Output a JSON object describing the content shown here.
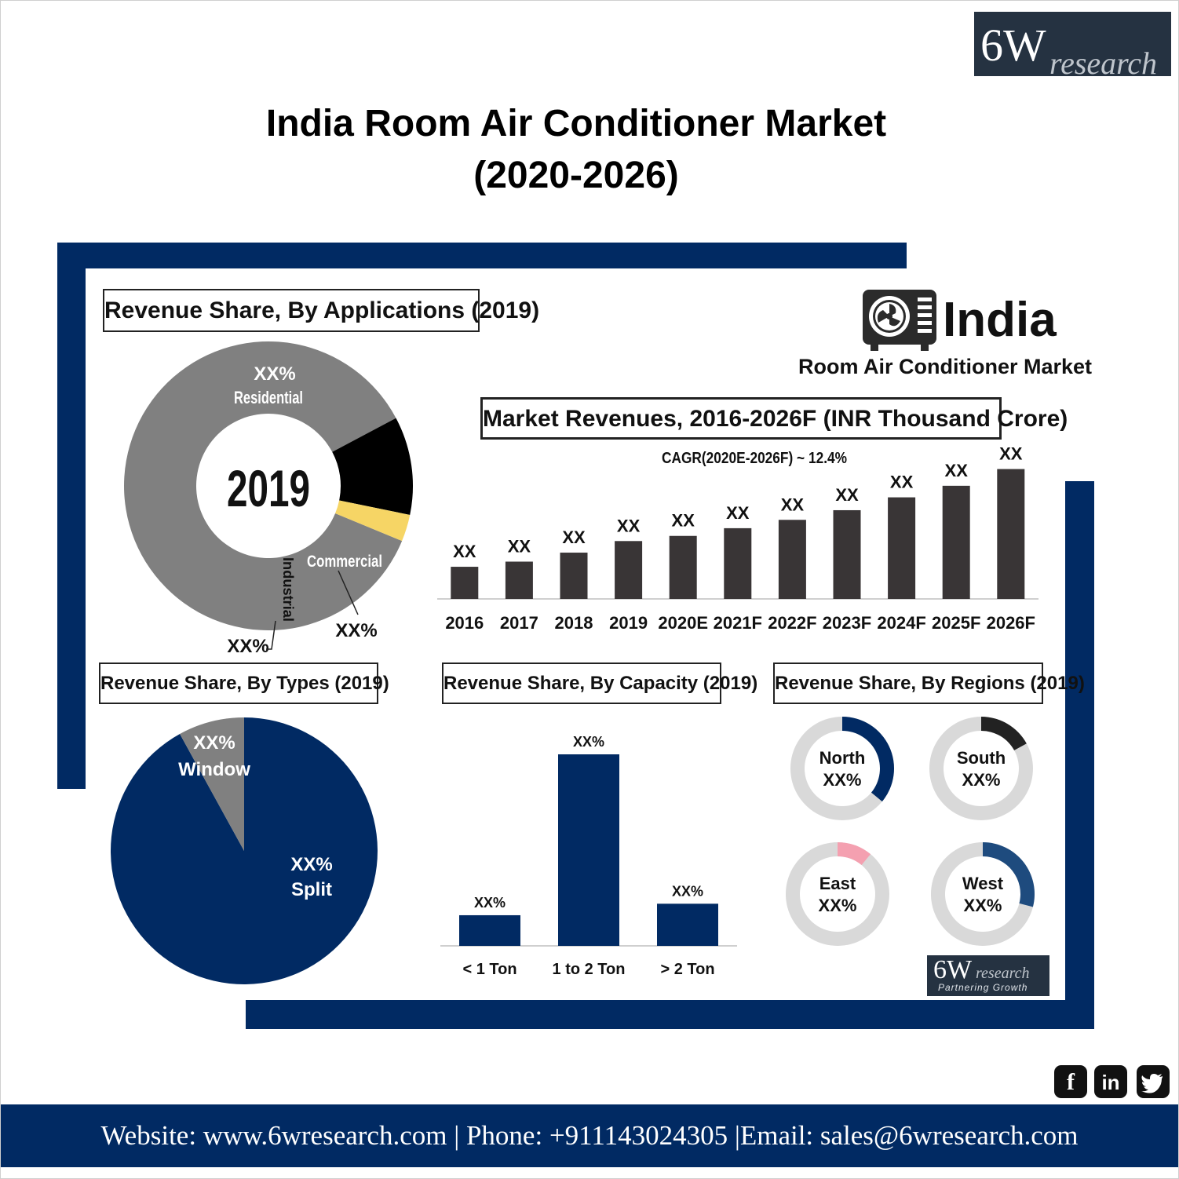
{
  "header": {
    "logo": {
      "big": "6W",
      "small": "research"
    },
    "title_line1": "India Room Air Conditioner Market",
    "title_line2": "(2020-2026)"
  },
  "india_logo": {
    "country": "India",
    "subtitle": "Room Air Conditioner Market",
    "icon": "air-conditioner-fan-icon"
  },
  "colors": {
    "navy": "#012a63",
    "dark_bar": "#393536",
    "gray": "#808080",
    "light_gray": "#d9d9d9",
    "yellow": "#f6d565",
    "pink": "#f4a0b0",
    "steel_blue": "#1e4b7e"
  },
  "chart_data": [
    {
      "type": "pie",
      "chart_title": "Revenue Share, By Applications (2019)",
      "center_label": "2019",
      "slices": [
        {
          "label": "Residential",
          "value_label": "XX%",
          "share": 0.86,
          "color": "#808080"
        },
        {
          "label": "Commercial",
          "value_label": "XX%",
          "share": 0.11,
          "color": "#000000"
        },
        {
          "label": "Industrial",
          "value_label": "XX%",
          "share": 0.03,
          "color": "#f6d565"
        }
      ]
    },
    {
      "type": "bar",
      "chart_title": "Market Revenues, 2016-2026F (INR Thousand Crore)",
      "annotation": "CAGR(2020E-2026F) ~ 12.4%",
      "categories": [
        "2016",
        "2017",
        "2018",
        "2019",
        "2020E",
        "2021F",
        "2022F",
        "2023F",
        "2024F",
        "2025F",
        "2026F"
      ],
      "values": [
        5,
        5.8,
        7.2,
        9,
        9.8,
        11,
        12.3,
        13.8,
        15.8,
        17.6,
        20.2
      ],
      "data_labels": [
        "XX",
        "XX",
        "XX",
        "XX",
        "XX",
        "XX",
        "XX",
        "XX",
        "XX",
        "XX",
        "XX"
      ],
      "ylim": [
        0,
        21
      ]
    },
    {
      "type": "pie",
      "chart_title": "Revenue Share, By Types (2019)",
      "slices": [
        {
          "label": "Split",
          "value_label": "XX%",
          "share": 0.92,
          "color": "#012a63"
        },
        {
          "label": "Window",
          "value_label": "XX%",
          "share": 0.08,
          "color": "#808080"
        }
      ]
    },
    {
      "type": "bar",
      "chart_title": "Revenue Share, By Capacity (2019)",
      "categories": [
        "< 1 Ton",
        "1 to 2 Ton",
        "> 2 Ton"
      ],
      "values": [
        16,
        100,
        22
      ],
      "data_labels": [
        "XX%",
        "XX%",
        "XX%"
      ],
      "ylim": [
        0,
        100
      ]
    },
    {
      "type": "pie",
      "chart_title": "Revenue Share, By Regions (2019)",
      "donuts": [
        {
          "label": "North",
          "value_label": "XX%",
          "share": 0.36,
          "color": "#012a63"
        },
        {
          "label": "South",
          "value_label": "XX%",
          "share": 0.17,
          "color": "#222222"
        },
        {
          "label": "East",
          "value_label": "XX%",
          "share": 0.11,
          "color": "#f4a0b0"
        },
        {
          "label": "West",
          "value_label": "XX%",
          "share": 0.29,
          "color": "#1e4b7e"
        }
      ]
    }
  ],
  "bottom_logo": {
    "big": "6W",
    "small": "research",
    "tagline": "Partnering Growth"
  },
  "social": {
    "facebook": "f",
    "linkedin": "in",
    "twitter_icon": "twitter-bird-icon"
  },
  "footer": {
    "text": "Website: www.6wresearch.com | Phone: +911143024305 |Email: sales@6wresearch.com"
  }
}
